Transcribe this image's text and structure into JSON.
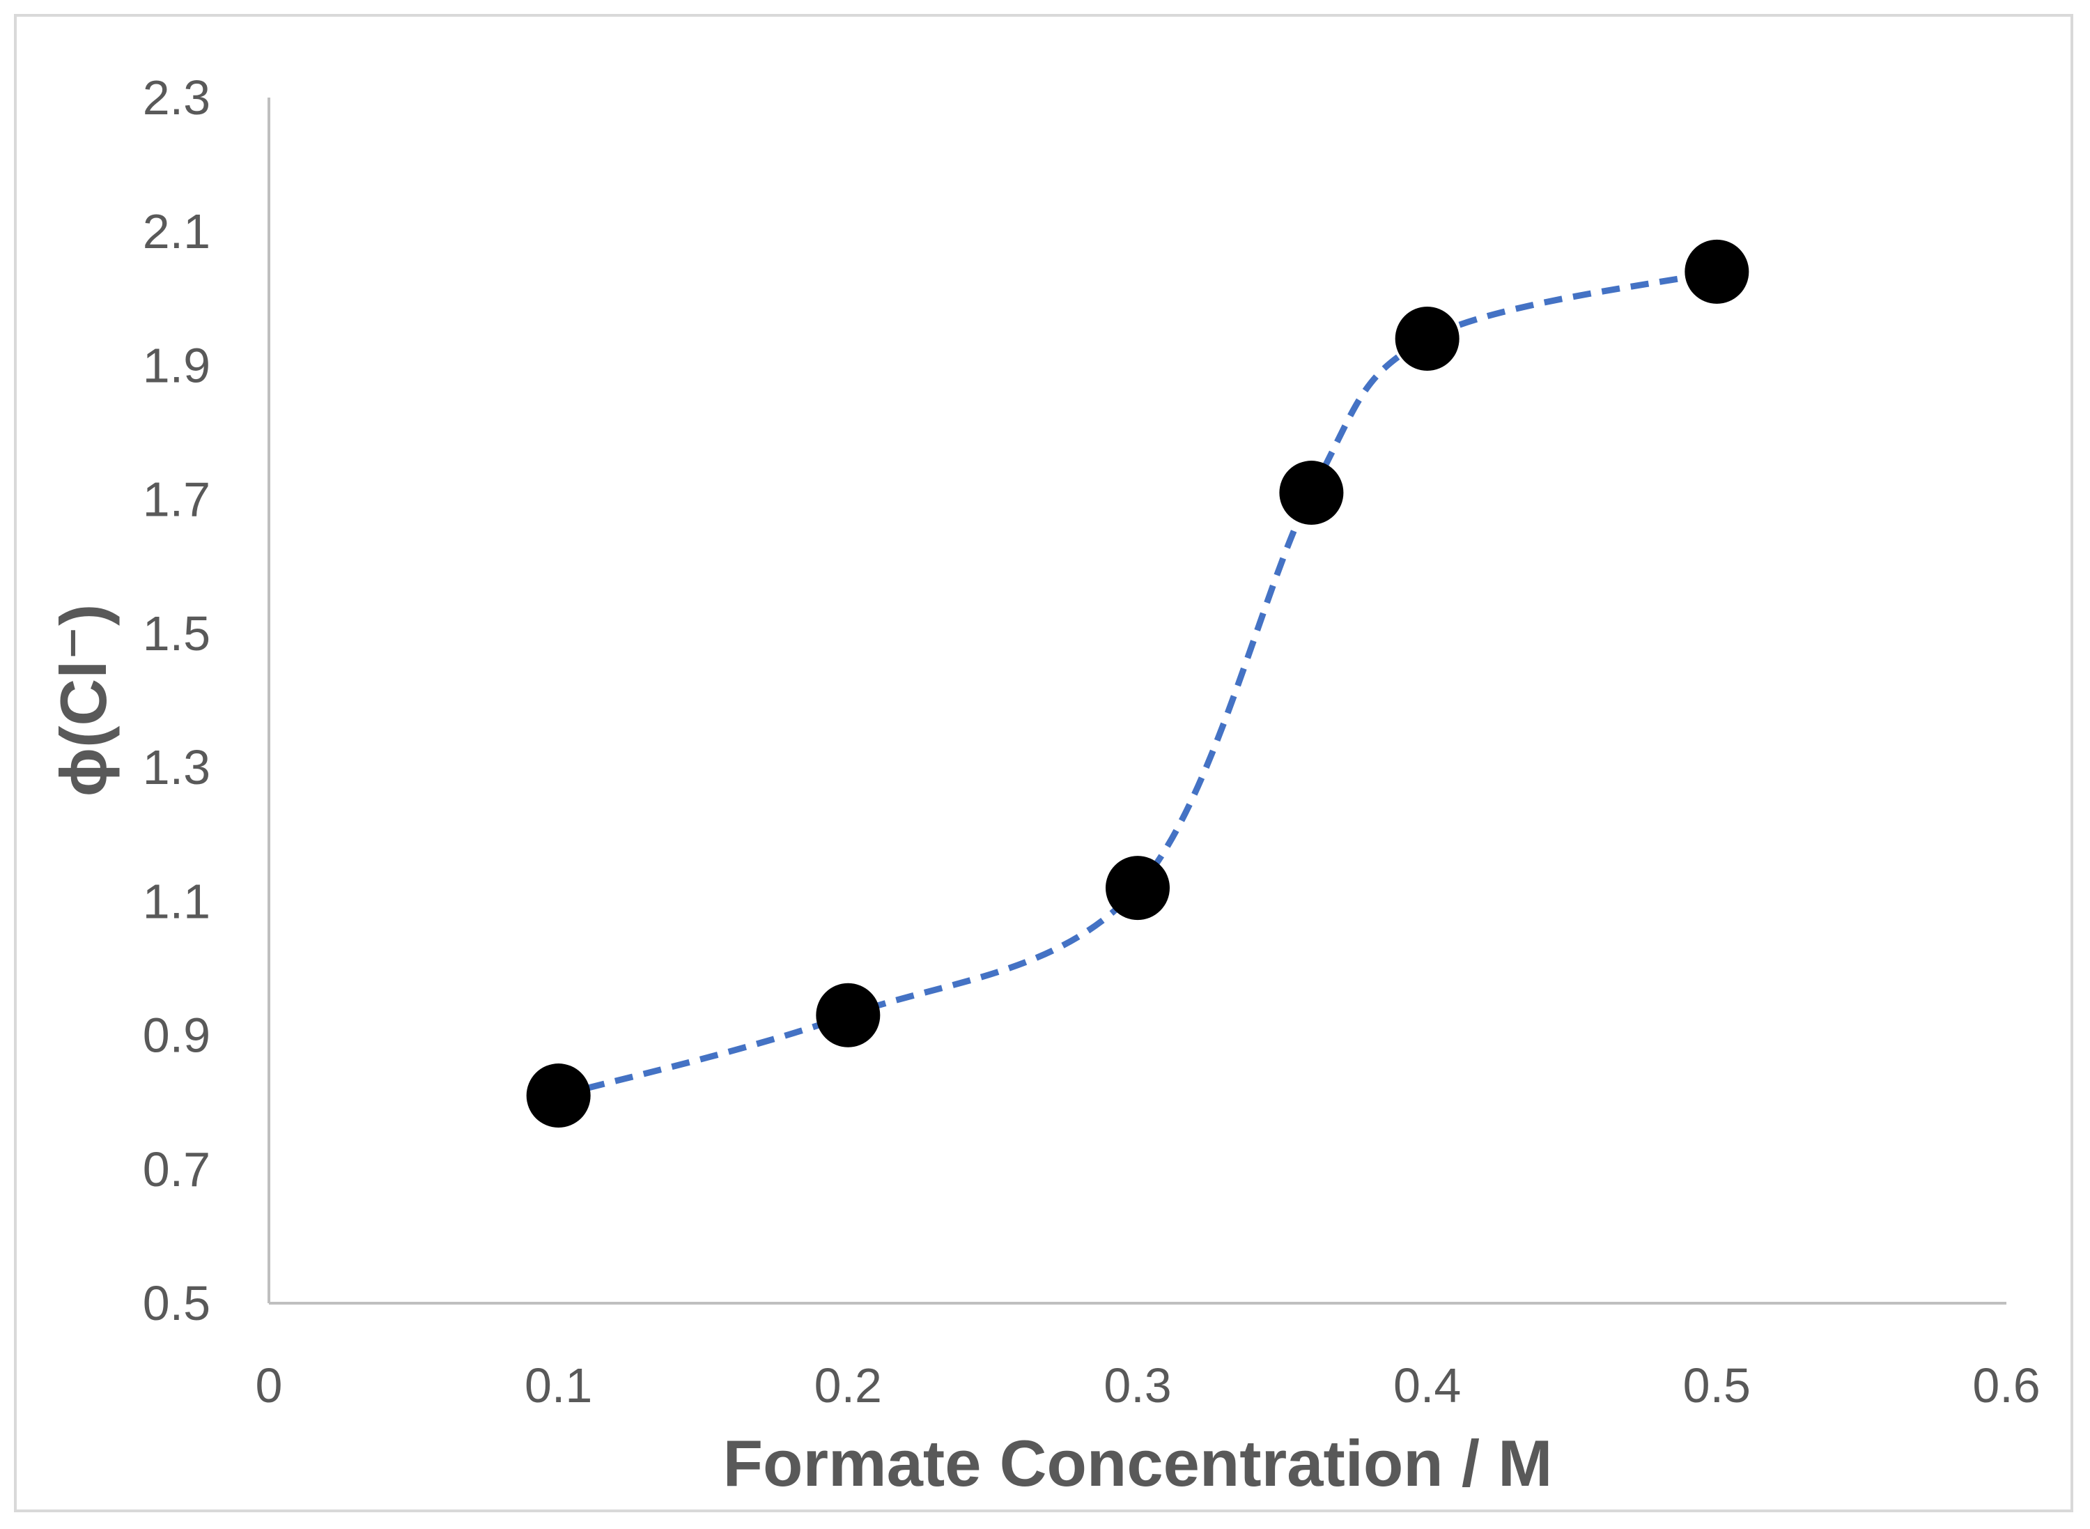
{
  "chart_data": {
    "type": "scatter",
    "title": "",
    "xlabel": "Formate Concentration / M",
    "ylabel": "ϕ(Cl⁻)",
    "xlim": [
      0,
      0.6
    ],
    "ylim": [
      0.5,
      2.3
    ],
    "x_ticks": [
      "0",
      "0.1",
      "0.2",
      "0.3",
      "0.4",
      "0.5",
      "0.6"
    ],
    "y_ticks": [
      "0.5",
      "0.7",
      "0.9",
      "1.1",
      "1.3",
      "1.5",
      "1.7",
      "1.9",
      "2.1",
      "2.3"
    ],
    "grid": false,
    "legend": "none",
    "series": [
      {
        "x": [
          0.1,
          0.2,
          0.3,
          0.36,
          0.4,
          0.5
        ],
        "y": [
          0.81,
          0.93,
          1.12,
          1.71,
          1.94,
          2.04
        ],
        "marker_color": "#000000",
        "line_color": "#4472c4",
        "line_style": "dashed-smooth"
      }
    ]
  }
}
